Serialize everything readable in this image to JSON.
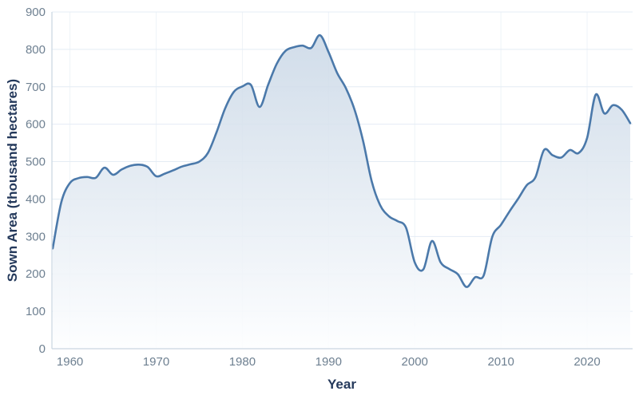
{
  "chart_data": {
    "type": "area",
    "title": "",
    "xlabel": "Year",
    "ylabel": "Sown Area (thousand hectares)",
    "xlim": [
      1958,
      2025
    ],
    "ylim": [
      0,
      900
    ],
    "xticks": [
      1960,
      1970,
      1980,
      1990,
      2000,
      2010,
      2020
    ],
    "yticks": [
      0,
      100,
      200,
      300,
      400,
      500,
      600,
      700,
      800,
      900
    ],
    "grid": true,
    "legend": false,
    "x": [
      1958,
      1959,
      1960,
      1961,
      1962,
      1963,
      1964,
      1965,
      1966,
      1967,
      1968,
      1969,
      1970,
      1971,
      1972,
      1973,
      1974,
      1975,
      1976,
      1977,
      1978,
      1979,
      1980,
      1981,
      1982,
      1983,
      1984,
      1985,
      1986,
      1987,
      1988,
      1989,
      1990,
      1991,
      1992,
      1993,
      1994,
      1995,
      1996,
      1997,
      1998,
      1999,
      2000,
      2001,
      2002,
      2003,
      2004,
      2005,
      2006,
      2007,
      2008,
      2009,
      2010,
      2011,
      2012,
      2013,
      2014,
      2015,
      2016,
      2017,
      2018,
      2019,
      2020,
      2021,
      2022,
      2023,
      2024,
      2025
    ],
    "values": [
      268,
      392,
      443,
      456,
      459,
      457,
      484,
      465,
      479,
      489,
      492,
      486,
      461,
      468,
      477,
      487,
      493,
      500,
      523,
      578,
      642,
      686,
      701,
      705,
      646,
      706,
      762,
      796,
      806,
      810,
      804,
      838,
      793,
      737,
      697,
      640,
      556,
      448,
      383,
      354,
      341,
      323,
      231,
      212,
      288,
      231,
      213,
      199,
      165,
      191,
      196,
      299,
      331,
      367,
      401,
      437,
      458,
      531,
      517,
      511,
      531,
      523,
      563,
      679,
      629,
      651,
      639,
      603
    ],
    "colors": {
      "line": "#4b79aa",
      "fill_top": "#c9d7e6",
      "fill_bottom": "#fdfeff",
      "grid": "#e4ecf4",
      "grid_vertical": "#eef3f8",
      "spine": "#c9d5e1",
      "tick_label": "#6e8091",
      "axis_title": "#24395b",
      "background": "#ffffff"
    }
  }
}
